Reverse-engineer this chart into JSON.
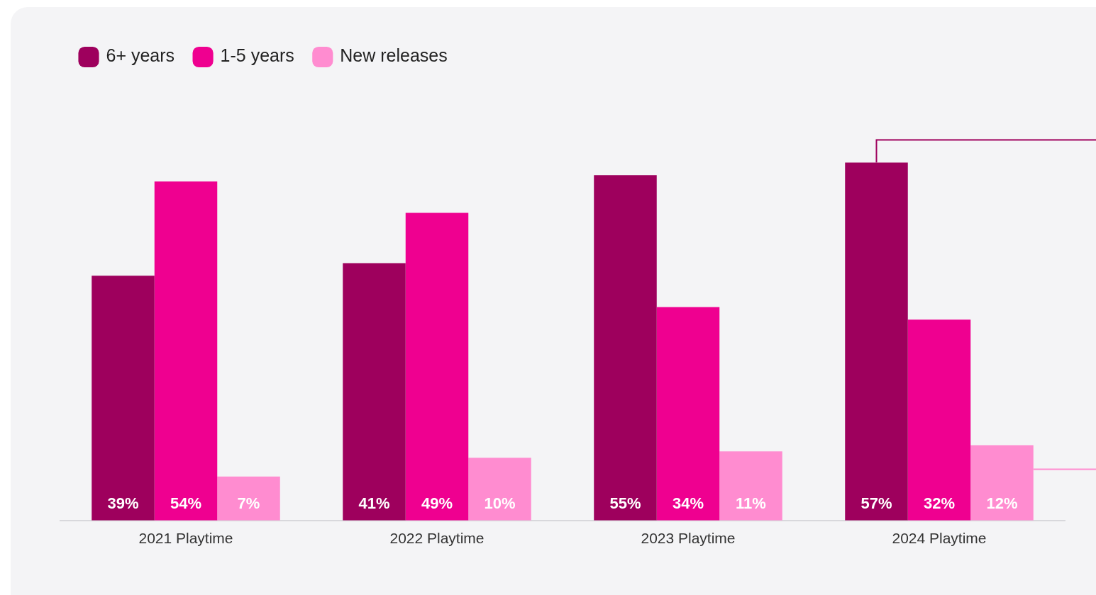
{
  "chart_data": {
    "type": "bar",
    "categories": [
      "2021 Playtime",
      "2022 Playtime",
      "2023 Playtime",
      "2024 Playtime"
    ],
    "series": [
      {
        "name": "6+ years",
        "color": "#9e005d",
        "values": [
          39,
          41,
          55,
          57
        ],
        "value_labels": [
          "39%",
          "41%",
          "55%",
          "57%"
        ]
      },
      {
        "name": "1-5 years",
        "color": "#ef0090",
        "values": [
          54,
          49,
          34,
          32
        ],
        "value_labels": [
          "54%",
          "49%",
          "34%",
          "32%"
        ]
      },
      {
        "name": "New releases",
        "color": "#ff8cd0",
        "values": [
          7,
          10,
          11,
          12
        ],
        "value_labels": [
          "7%",
          "10%",
          "11%",
          "12%"
        ]
      }
    ],
    "tick_labels": "x",
    "legend": "top left"
  }
}
